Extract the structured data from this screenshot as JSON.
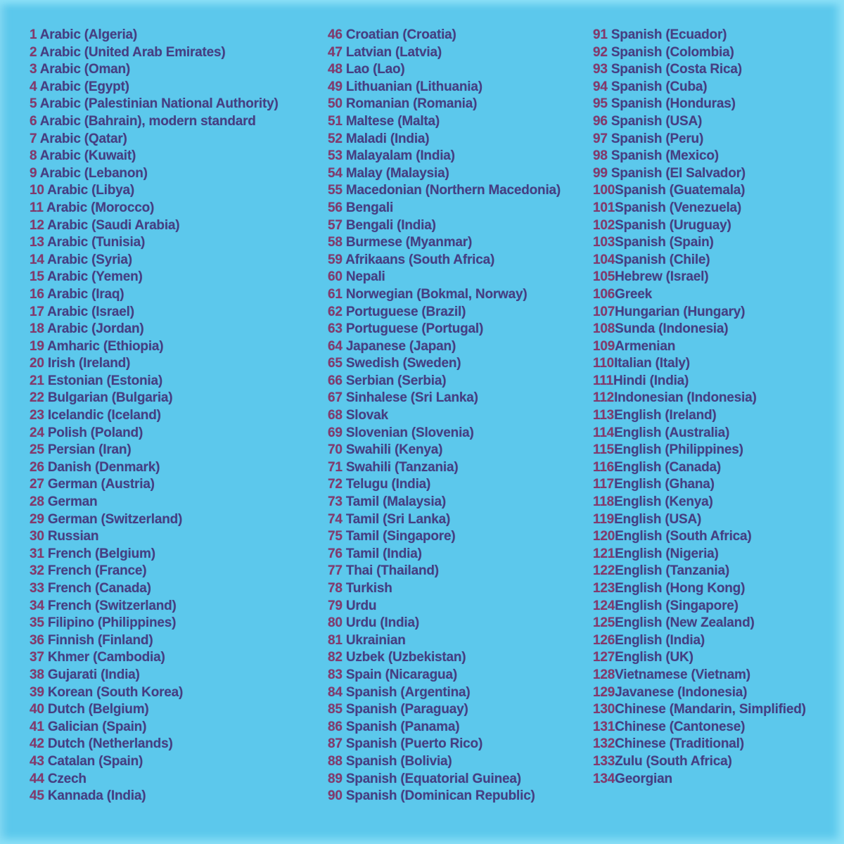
{
  "page": {
    "background_color": "#5cc8ec",
    "edge_glow_color": "#8ce0f7",
    "language_text_color": "#463e82",
    "number_text_color": "#84396b"
  },
  "list": {
    "columns": [
      {
        "items": [
          "1 Arabic (Algeria)",
          "2 Arabic (United Arab Emirates)",
          "3 Arabic (Oman)",
          "4 Arabic (Egypt)",
          "5 Arabic (Palestinian National Authority)",
          "6 Arabic (Bahrain), modern standard",
          "7 Arabic (Qatar)",
          "8 Arabic (Kuwait)",
          "9 Arabic (Lebanon)",
          "10 Arabic (Libya)",
          "11 Arabic (Morocco)",
          "12 Arabic (Saudi Arabia)",
          "13 Arabic (Tunisia)",
          "14 Arabic (Syria)",
          "15 Arabic (Yemen)",
          "16 Arabic (Iraq)",
          "17 Arabic (Israel)",
          "18 Arabic (Jordan)",
          "19 Amharic (Ethiopia)",
          "20 Irish (Ireland)",
          "21 Estonian (Estonia)",
          "22 Bulgarian (Bulgaria)",
          "23 Icelandic (Iceland)",
          "24 Polish (Poland)",
          "25 Persian (Iran)",
          "26 Danish (Denmark)",
          "27 German (Austria)",
          "28 German",
          "29 German (Switzerland)",
          "30 Russian",
          "31 French (Belgium)",
          "32 French (France)",
          "33 French (Canada)",
          "34 French (Switzerland)",
          "35 Filipino (Philippines)",
          "36 Finnish (Finland)",
          "37 Khmer (Cambodia)",
          "38 Gujarati (India)",
          "39 Korean (South Korea)",
          "40 Dutch (Belgium)",
          "41 Galician (Spain)",
          "42 Dutch (Netherlands)",
          "43 Catalan (Spain)",
          "44 Czech",
          "45 Kannada (India)"
        ]
      },
      {
        "items": [
          "46 Croatian (Croatia)",
          "47 Latvian (Latvia)",
          "48 Lao (Lao)",
          "49 Lithuanian (Lithuania)",
          "50 Romanian (Romania)",
          "51 Maltese (Malta)",
          "52 Maladi (India)",
          "53 Malayalam (India)",
          "54 Malay (Malaysia)",
          "55 Macedonian (Northern Macedonia)",
          "56 Bengali",
          "57 Bengali (India)",
          "58 Burmese (Myanmar)",
          "59 Afrikaans (South Africa)",
          "60 Nepali",
          "61 Norwegian (Bokmal, Norway)",
          "62 Portuguese (Brazil)",
          "63 Portuguese (Portugal)",
          "64 Japanese (Japan)",
          "65 Swedish (Sweden)",
          "66 Serbian (Serbia)",
          "67 Sinhalese (Sri Lanka)",
          "68 Slovak",
          "69 Slovenian (Slovenia)",
          "70 Swahili (Kenya)",
          "71 Swahili (Tanzania)",
          "72 Telugu (India)",
          "73 Tamil (Malaysia)",
          "74 Tamil (Sri Lanka)",
          "75 Tamil (Singapore)",
          "76 Tamil (India)",
          "77 Thai (Thailand)",
          "78 Turkish",
          "79 Urdu",
          "80 Urdu (India)",
          "81 Ukrainian",
          "82 Uzbek (Uzbekistan)",
          "83 Spain (Nicaragua)",
          "84 Spanish (Argentina)",
          "85 Spanish (Paraguay)",
          "86 Spanish (Panama)",
          "87 Spanish (Puerto Rico)",
          "88 Spanish (Bolivia)",
          "89 Spanish (Equatorial Guinea)",
          "90 Spanish (Dominican Republic)"
        ]
      },
      {
        "items": [
          "91 Spanish (Ecuador)",
          "92 Spanish (Colombia)",
          "93 Spanish (Costa Rica)",
          "94 Spanish (Cuba)",
          "95 Spanish (Honduras)",
          "96 Spanish (USA)",
          "97 Spanish (Peru)",
          "98 Spanish (Mexico)",
          "99 Spanish (El Salvador)",
          "100Spanish (Guatemala)",
          "101Spanish (Venezuela)",
          "102Spanish (Uruguay)",
          "103Spanish (Spain)",
          "104Spanish (Chile)",
          "105Hebrew (Israel)",
          "106Greek",
          "107Hungarian (Hungary)",
          "108Sunda (Indonesia)",
          "109Armenian",
          "110Italian (Italy)",
          "111Hindi (India)",
          "112Indonesian (Indonesia)",
          "113English (Ireland)",
          "114English (Australia)",
          "115English (Philippines)",
          "116English (Canada)",
          "117English (Ghana)",
          "118English (Kenya)",
          "119English (USA)",
          "120English (South Africa)",
          "121English (Nigeria)",
          "122English (Tanzania)",
          "123English (Hong Kong)",
          "124English (Singapore)",
          "125English (New Zealand)",
          "126English (India)",
          "127English (UK)",
          "128Vietnamese (Vietnam)",
          "129Javanese (Indonesia)",
          "130Chinese (Mandarin, Simplified)",
          "131Chinese (Cantonese)",
          "132Chinese (Traditional)",
          "133Zulu (South Africa)",
          "134Georgian"
        ]
      }
    ]
  }
}
